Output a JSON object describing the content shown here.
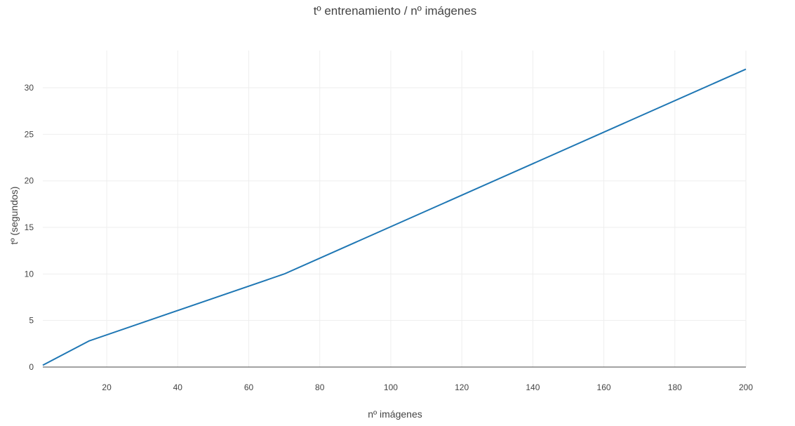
{
  "chart_data": {
    "type": "line",
    "title": "tº entrenamiento / nº imágenes",
    "xlabel": "nº imágenes",
    "ylabel": "tº (segundos)",
    "xlim": [
      2,
      200
    ],
    "ylim": [
      0,
      34
    ],
    "x_ticks": [
      20,
      40,
      60,
      80,
      100,
      120,
      140,
      160,
      180,
      200
    ],
    "y_ticks": [
      0,
      5,
      10,
      15,
      20,
      25,
      30
    ],
    "grid": true,
    "line_color": "#1f77b4",
    "series": [
      {
        "x": [
          2,
          15,
          70,
          200
        ],
        "values": [
          0.2,
          2.8,
          10.0,
          32.0
        ]
      }
    ]
  }
}
